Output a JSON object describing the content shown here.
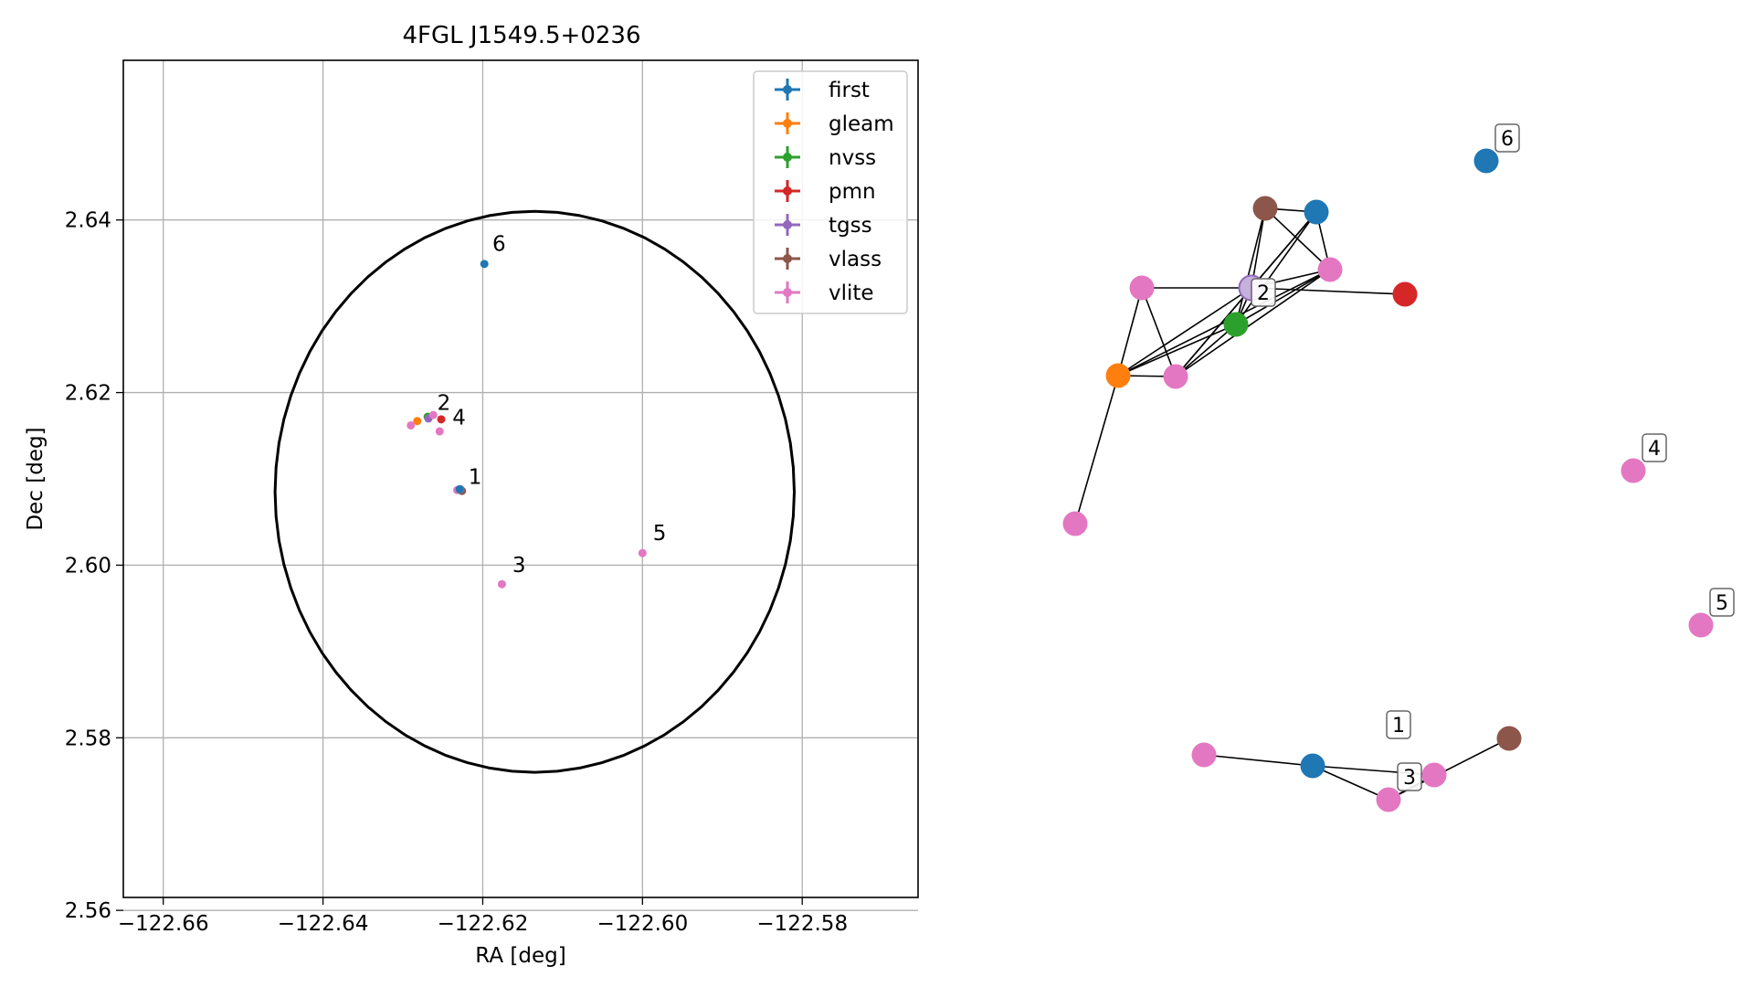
{
  "colors": {
    "first": "#1f77b4",
    "gleam": "#ff7f0e",
    "nvss": "#2ca02c",
    "pmn": "#d62728",
    "tgss": "#9467bd",
    "vlass": "#8c564b",
    "vlite": "#e377c2",
    "grid": "#b0b0b0",
    "circle": "#000000"
  },
  "chart_data": [
    {
      "type": "scatter",
      "title": "4FGL J1549.5+0236",
      "xlabel": "RA [deg]",
      "ylabel": "Dec [deg]",
      "xlim": [
        -122.665,
        -122.5655
      ],
      "ylim": [
        2.5615,
        2.6585
      ],
      "xticks": [
        -122.66,
        -122.64,
        -122.62,
        -122.6,
        -122.58
      ],
      "xtick_labels": [
        "−122.66",
        "−122.64",
        "−122.62",
        "−122.60",
        "−122.58"
      ],
      "yticks": [
        2.56,
        2.58,
        2.6,
        2.62,
        2.64
      ],
      "ytick_labels": [
        "2.56",
        "2.58",
        "2.60",
        "2.62",
        "2.64"
      ],
      "grid": true,
      "legend_position": "top-right",
      "legend": [
        "first",
        "gleam",
        "nvss",
        "pmn",
        "tgss",
        "vlass",
        "vlite"
      ],
      "circle": {
        "center": [
          -122.6135,
          2.6085
        ],
        "radius": 0.0325
      },
      "points": [
        {
          "catalog": "first",
          "x": -122.6198,
          "y": 2.6349
        },
        {
          "catalog": "gleam",
          "x": -122.6282,
          "y": 2.6167
        },
        {
          "catalog": "nvss",
          "x": -122.6269,
          "y": 2.6172
        },
        {
          "catalog": "pmn",
          "x": -122.6252,
          "y": 2.6169
        },
        {
          "catalog": "tgss",
          "x": -122.6268,
          "y": 2.617
        },
        {
          "catalog": "vlass",
          "x": -122.6226,
          "y": 2.6086
        },
        {
          "catalog": "vlite",
          "x": -122.629,
          "y": 2.6162
        },
        {
          "catalog": "vlite",
          "x": -122.6262,
          "y": 2.6174
        },
        {
          "catalog": "vlite",
          "x": -122.6254,
          "y": 2.6155
        },
        {
          "catalog": "vlite",
          "x": -122.6232,
          "y": 2.6087
        },
        {
          "catalog": "tgss",
          "x": -122.6228,
          "y": 2.6088
        },
        {
          "catalog": "first",
          "x": -122.6229,
          "y": 2.6088
        },
        {
          "catalog": "vlite",
          "x": -122.6176,
          "y": 2.5978
        },
        {
          "catalog": "vlite",
          "x": -122.6,
          "y": 2.6014
        }
      ],
      "labels": [
        {
          "text": "6",
          "x": -122.6188,
          "y": 2.6364
        },
        {
          "text": "2",
          "x": -122.6257,
          "y": 2.618
        },
        {
          "text": "4",
          "x": -122.6238,
          "y": 2.6163
        },
        {
          "text": "1",
          "x": -122.6218,
          "y": 2.6094
        },
        {
          "text": "3",
          "x": -122.6163,
          "y": 2.5992
        },
        {
          "text": "5",
          "x": -122.5987,
          "y": 2.6029
        }
      ]
    },
    {
      "type": "network",
      "nodes": [
        {
          "id": "a",
          "catalog": "vlass"
        },
        {
          "id": "b",
          "catalog": "first"
        },
        {
          "id": "c",
          "catalog": "vlite"
        },
        {
          "id": "d",
          "catalog": "tgss"
        },
        {
          "id": "e",
          "catalog": "vlite"
        },
        {
          "id": "f",
          "catalog": "pmn"
        },
        {
          "id": "g",
          "catalog": "nvss"
        },
        {
          "id": "h",
          "catalog": "gleam"
        },
        {
          "id": "i",
          "catalog": "vlite"
        },
        {
          "id": "j",
          "catalog": "vlite"
        },
        {
          "id": "k",
          "catalog": "first"
        },
        {
          "id": "l",
          "catalog": "vlite"
        },
        {
          "id": "m",
          "catalog": "first"
        },
        {
          "id": "n",
          "catalog": "vlite"
        },
        {
          "id": "o",
          "catalog": "vlite"
        },
        {
          "id": "p",
          "catalog": "vlass"
        },
        {
          "id": "q",
          "catalog": "vlite"
        },
        {
          "id": "r",
          "catalog": "vlite"
        }
      ],
      "edges": [
        [
          "a",
          "b"
        ],
        [
          "a",
          "d"
        ],
        [
          "a",
          "g"
        ],
        [
          "a",
          "e"
        ],
        [
          "b",
          "d"
        ],
        [
          "b",
          "g"
        ],
        [
          "b",
          "e"
        ],
        [
          "b",
          "i"
        ],
        [
          "c",
          "d"
        ],
        [
          "c",
          "h"
        ],
        [
          "c",
          "i"
        ],
        [
          "d",
          "f"
        ],
        [
          "d",
          "e"
        ],
        [
          "d",
          "g"
        ],
        [
          "d",
          "h"
        ],
        [
          "d",
          "i"
        ],
        [
          "e",
          "g"
        ],
        [
          "e",
          "h"
        ],
        [
          "e",
          "i"
        ],
        [
          "g",
          "h"
        ],
        [
          "g",
          "i"
        ],
        [
          "h",
          "i"
        ],
        [
          "h",
          "j"
        ],
        [
          "l",
          "m"
        ],
        [
          "m",
          "n"
        ],
        [
          "m",
          "o"
        ],
        [
          "n",
          "o"
        ],
        [
          "o",
          "p"
        ]
      ],
      "labels": [
        {
          "text": "6",
          "node": "k"
        },
        {
          "text": "2",
          "node": "d"
        },
        {
          "text": "4",
          "node": "q"
        },
        {
          "text": "5",
          "node": "r"
        },
        {
          "text": "1",
          "node": "n"
        },
        {
          "text": "3",
          "node": "o"
        }
      ]
    }
  ]
}
